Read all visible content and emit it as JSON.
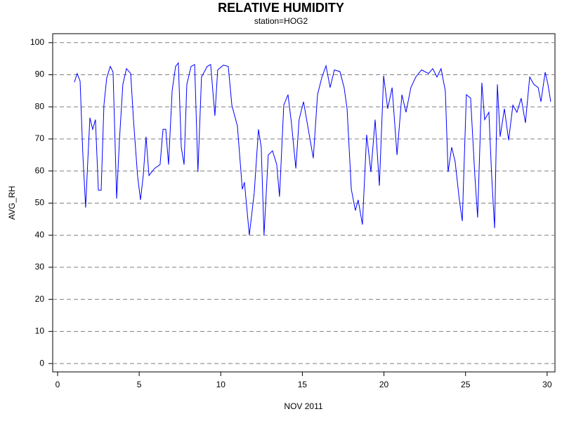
{
  "chart_data": {
    "type": "line",
    "title": "RELATIVE HUMIDITY",
    "subtitle": "station=HOG2",
    "x_label": "NOV 2011",
    "y_label": "AVG_RH",
    "xlim": [
      -0.3,
      30.48
    ],
    "ylim": [
      -2.6,
      102.8
    ],
    "xticks": [
      0,
      5,
      10,
      15,
      20,
      25,
      30
    ],
    "yticks": [
      0,
      10,
      20,
      30,
      40,
      50,
      60,
      70,
      80,
      90,
      100
    ],
    "grid": true,
    "series": [
      {
        "name": "AVG_RH",
        "color": "#0000ff",
        "x": [
          1.03,
          1.2,
          1.38,
          1.55,
          1.72,
          1.85,
          1.98,
          2.15,
          2.32,
          2.5,
          2.67,
          2.84,
          3.01,
          3.23,
          3.4,
          3.62,
          3.79,
          4.0,
          4.22,
          4.48,
          4.65,
          4.9,
          5.08,
          5.25,
          5.42,
          5.6,
          5.94,
          6.28,
          6.46,
          6.63,
          6.8,
          7.02,
          7.23,
          7.4,
          7.58,
          7.75,
          7.92,
          8.18,
          8.4,
          8.6,
          8.82,
          9.17,
          9.38,
          9.64,
          9.81,
          10.16,
          10.46,
          10.68,
          11.02,
          11.32,
          11.45,
          11.75,
          12.05,
          12.31,
          12.48,
          12.65,
          12.91,
          13.17,
          13.43,
          13.6,
          13.86,
          14.12,
          14.33,
          14.6,
          14.8,
          15.07,
          15.33,
          15.67,
          15.93,
          16.2,
          16.45,
          16.7,
          16.96,
          17.3,
          17.56,
          17.74,
          18.0,
          18.25,
          18.42,
          18.68,
          18.94,
          19.2,
          19.46,
          19.72,
          19.98,
          20.23,
          20.5,
          20.8,
          21.1,
          21.35,
          21.65,
          21.95,
          22.3,
          22.73,
          22.99,
          23.25,
          23.5,
          23.76,
          23.93,
          24.15,
          24.36,
          24.62,
          24.8,
          25.05,
          25.31,
          25.57,
          25.74,
          26.0,
          26.17,
          26.43,
          26.6,
          26.78,
          26.95,
          27.12,
          27.38,
          27.64,
          27.9,
          28.15,
          28.41,
          28.67,
          28.93,
          29.19,
          29.45,
          29.62,
          29.88,
          30.05,
          30.22
        ],
        "values": [
          87.7,
          90.4,
          88,
          65,
          48.6,
          63,
          76.6,
          73,
          76,
          54,
          54,
          80.5,
          89,
          92.6,
          90.8,
          51.4,
          69.6,
          87,
          91.9,
          90.4,
          76,
          58.6,
          51,
          58.6,
          70.7,
          58.6,
          60.8,
          62,
          73,
          73,
          62,
          85,
          92.6,
          93.7,
          67.4,
          62,
          87,
          92.6,
          93.2,
          59.7,
          89.3,
          92.6,
          93.2,
          77.2,
          91.5,
          93,
          92.6,
          80.5,
          74,
          54.3,
          56.5,
          40,
          53.2,
          73,
          67.4,
          40,
          65,
          66.3,
          62,
          52,
          80.5,
          83.8,
          75,
          60.8,
          76,
          81.6,
          74,
          64,
          83.8,
          89.3,
          92.8,
          86,
          91.5,
          91,
          86,
          79.4,
          54.3,
          47.7,
          51,
          43.3,
          71.3,
          59.7,
          76,
          55.4,
          89.7,
          79.4,
          86,
          65,
          83.8,
          78.3,
          86,
          89.3,
          91.5,
          90.4,
          91.9,
          89.3,
          91.9,
          85,
          59.7,
          67.4,
          63,
          51,
          44.4,
          83.8,
          82.7,
          58.6,
          45.5,
          87.5,
          76,
          78.3,
          58.6,
          42.2,
          87,
          70.7,
          79.4,
          69.6,
          80.5,
          78.3,
          82.7,
          75,
          89.3,
          87,
          86,
          81.6,
          90.8,
          87,
          81.6
        ]
      }
    ]
  }
}
